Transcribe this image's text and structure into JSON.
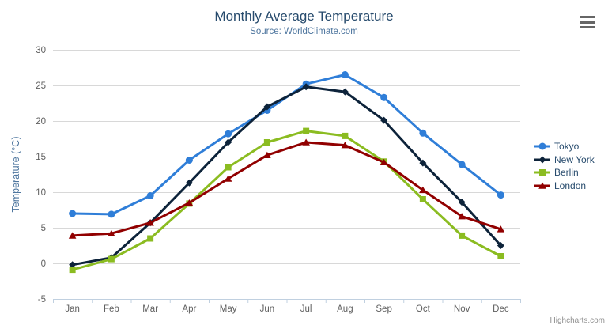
{
  "chart_data": {
    "type": "line",
    "title": "Monthly Average Temperature",
    "subtitle": "Source: WorldClimate.com",
    "categories": [
      "Jan",
      "Feb",
      "Mar",
      "Apr",
      "May",
      "Jun",
      "Jul",
      "Aug",
      "Sep",
      "Oct",
      "Nov",
      "Dec"
    ],
    "series": [
      {
        "name": "Tokyo",
        "color": "#2f7ed8",
        "marker": "circle",
        "values": [
          7.0,
          6.9,
          9.5,
          14.5,
          18.2,
          21.5,
          25.2,
          26.5,
          23.3,
          18.3,
          13.9,
          9.6
        ]
      },
      {
        "name": "New York",
        "color": "#0d233a",
        "marker": "diamond",
        "values": [
          -0.2,
          0.8,
          5.7,
          11.3,
          17.0,
          22.0,
          24.8,
          24.1,
          20.1,
          14.1,
          8.6,
          2.5
        ]
      },
      {
        "name": "Berlin",
        "color": "#8bbc21",
        "marker": "square",
        "values": [
          -0.9,
          0.6,
          3.5,
          8.4,
          13.5,
          17.0,
          18.6,
          17.9,
          14.3,
          9.0,
          3.9,
          1.0
        ]
      },
      {
        "name": "London",
        "color": "#910000",
        "marker": "triangle",
        "values": [
          3.9,
          4.2,
          5.7,
          8.5,
          11.9,
          15.2,
          17.0,
          16.6,
          14.2,
          10.3,
          6.6,
          4.8
        ]
      }
    ],
    "xlabel": "",
    "ylabel": "Temperature (°C)",
    "ylim": [
      -5,
      30
    ],
    "ytick_interval": 5,
    "grid": true,
    "legend_position": "right"
  },
  "credit": {
    "label": "Highcharts.com"
  },
  "colors": {
    "title": "#274b6d",
    "subtitle": "#4d759e",
    "axis_title": "#4d759e",
    "tick_label": "#606060",
    "grid_line": "#d8d8d8",
    "axis_line": "#c0d0e0",
    "legend_text": "#274b6d",
    "credit_text": "#909090",
    "menu_icon": "#666666"
  }
}
